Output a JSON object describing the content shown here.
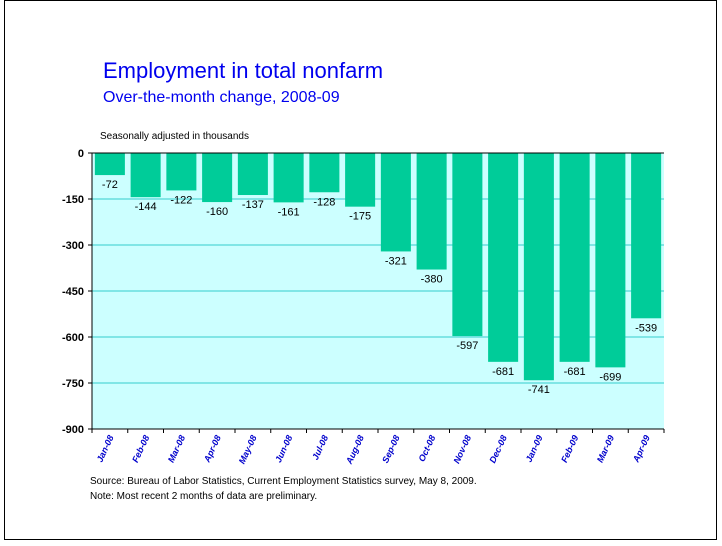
{
  "title": "Employment in total nonfarm",
  "subtitle": "Over-the-month change, 2008-09",
  "units_label": "Seasonally adjusted in thousands",
  "source_note": "Source:  Bureau of Labor Statistics, Current Employment Statistics survey, May 8, 2009.",
  "note": "Note:  Most recent 2 months of data are preliminary.",
  "colors": {
    "bar": "#00cc99",
    "plot_background": "#ccffff",
    "gridline": "#33cccc",
    "axis": "#000000",
    "title": "#0000ee",
    "category_label": "#0000cc"
  },
  "chart_data": {
    "type": "bar",
    "title": "Employment in total nonfarm",
    "subtitle": "Over-the-month change, 2008-09",
    "ylabel": "Seasonally adjusted in thousands",
    "xlabel": "",
    "categories": [
      "Jan-08",
      "Feb-08",
      "Mar-08",
      "Apr-08",
      "May-08",
      "Jun-08",
      "Jul-08",
      "Aug-08",
      "Sep-08",
      "Oct-08",
      "Nov-08",
      "Dec-08",
      "Jan-09",
      "Feb-09",
      "Mar-09",
      "Apr-09"
    ],
    "values": [
      -72,
      -144,
      -122,
      -160,
      -137,
      -161,
      -128,
      -175,
      -321,
      -380,
      -597,
      -681,
      -741,
      -681,
      -699,
      -539
    ],
    "ylim": [
      -900,
      0
    ],
    "yticks": [
      0,
      -150,
      -300,
      -450,
      -600,
      -750,
      -900
    ],
    "grid": true,
    "legend": "none"
  }
}
